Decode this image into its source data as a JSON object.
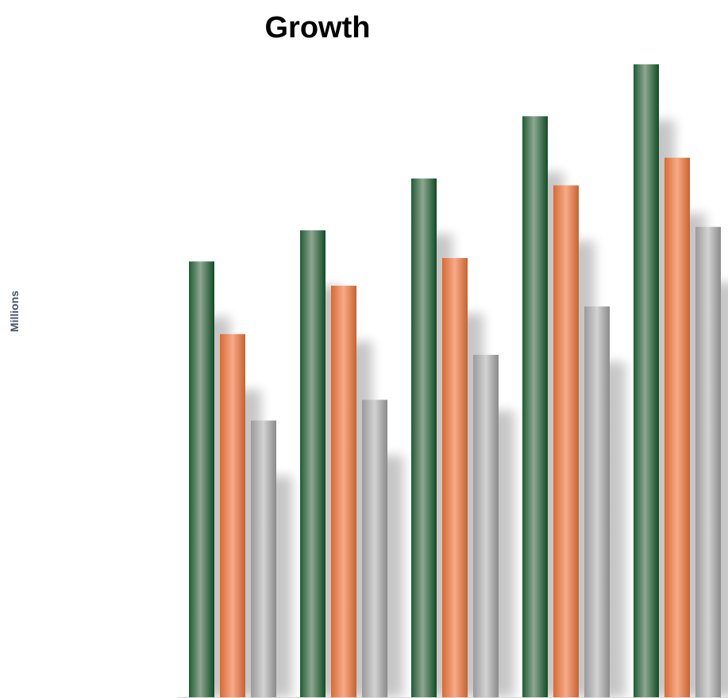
{
  "chart_data": {
    "type": "bar",
    "title": "Growth",
    "xlabel": "",
    "ylabel": "Millions",
    "categories": [
      "",
      "",
      "",
      "",
      ""
    ],
    "series": [
      {
        "values": [
          6.3,
          6.75,
          7.5,
          8.4,
          9.15
        ],
        "color": "#1e5c34"
      },
      {
        "values": [
          5.25,
          5.95,
          6.35,
          7.4,
          7.8
        ],
        "color": "#e07a3f"
      },
      {
        "values": [
          4.0,
          4.3,
          4.95,
          5.65,
          6.8
        ],
        "color": "#9e9e9e"
      }
    ],
    "ylim": [
      0,
      10
    ],
    "grid": false,
    "legend": "none"
  }
}
